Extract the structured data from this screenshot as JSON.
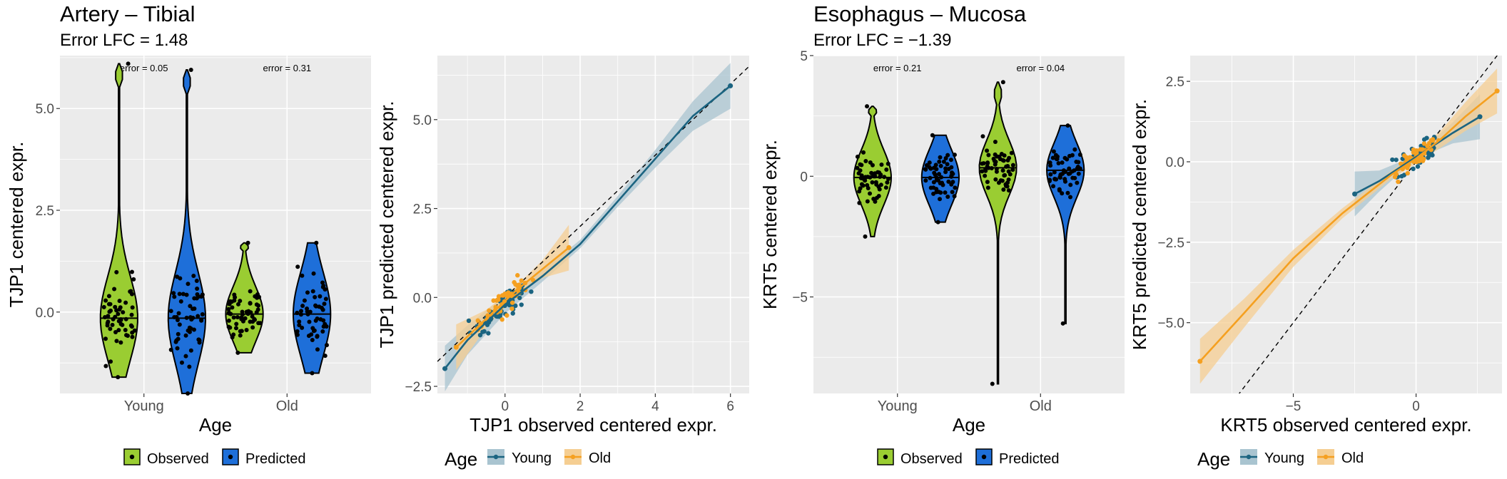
{
  "colors": {
    "observed_fill": "#9ACD32",
    "predicted_fill": "#1E6FD9",
    "young_line": "#1B6481",
    "young_band": "#A9C4D0",
    "old_line": "#F5A020",
    "old_band": "#F5CE92",
    "panel_bg": "#EBEBEB",
    "grid": "#FFFFFF"
  },
  "panels": [
    {
      "title": "Artery – Tibial",
      "subtitle": "Error LFC = 1.48"
    },
    {
      "title": "Esophagus – Mucosa",
      "subtitle": "Error LFC = −1.39"
    }
  ],
  "chart_data": [
    {
      "type": "violin",
      "xlabel": "Age",
      "ylabel": "TJP1 centered expr.",
      "categories": [
        "Young",
        "Old"
      ],
      "ylim": [
        -2.0,
        6.3
      ],
      "y_ticks": [
        0.0,
        2.5,
        5.0
      ],
      "y_tick_labels": [
        "0.0",
        "2.5",
        "5.0"
      ],
      "error_labels": [
        "error = 0.05",
        "error = 0.31"
      ],
      "legend": {
        "position": "bottom",
        "entries": [
          "Observed",
          "Predicted"
        ]
      },
      "series": [
        {
          "name": "Observed",
          "group": "Young",
          "median": -0.15,
          "min": -1.6,
          "max": 6.1
        },
        {
          "name": "Predicted",
          "group": "Young",
          "median": -0.15,
          "min": -2.0,
          "max": 5.95
        },
        {
          "name": "Observed",
          "group": "Old",
          "median": -0.05,
          "min": -1.0,
          "max": 1.7
        },
        {
          "name": "Predicted",
          "group": "Old",
          "median": -0.05,
          "min": -1.5,
          "max": 1.7
        }
      ]
    },
    {
      "type": "scatter",
      "xlabel": "TJP1 observed centered expr.",
      "ylabel": "TJP1 predicted centered expr.",
      "xlim": [
        -1.8,
        6.5
      ],
      "ylim": [
        -2.7,
        6.8
      ],
      "x_ticks": [
        0,
        2,
        4,
        6
      ],
      "x_tick_labels": [
        "0",
        "2",
        "4",
        "6"
      ],
      "y_ticks": [
        -2.5,
        0.0,
        2.5,
        5.0
      ],
      "y_tick_labels": [
        "−2.5",
        "0.0",
        "2.5",
        "5.0"
      ],
      "reference_line": "y = x",
      "legend": {
        "position": "bottom",
        "title": "Age",
        "entries": [
          "Young",
          "Old"
        ]
      },
      "series": [
        {
          "name": "Young",
          "fit": [
            [
              -1.6,
              -2.0
            ],
            [
              -1.0,
              -1.2
            ],
            [
              0.0,
              -0.2
            ],
            [
              1.0,
              0.6
            ],
            [
              2.0,
              1.5
            ],
            [
              3.0,
              2.7
            ],
            [
              4.0,
              3.9
            ],
            [
              5.0,
              5.1
            ],
            [
              6.0,
              5.95
            ]
          ]
        },
        {
          "name": "Old",
          "fit": [
            [
              -1.3,
              -1.4
            ],
            [
              -0.5,
              -0.6
            ],
            [
              0.3,
              0.2
            ],
            [
              1.0,
              0.8
            ],
            [
              1.7,
              1.4
            ]
          ]
        }
      ]
    },
    {
      "type": "violin",
      "xlabel": "Age",
      "ylabel": "KRT5 centered expr.",
      "categories": [
        "Young",
        "Old"
      ],
      "ylim": [
        -9.0,
        5.0
      ],
      "y_ticks": [
        -5,
        0,
        5
      ],
      "y_tick_labels": [
        "−5",
        "0",
        "5"
      ],
      "error_labels": [
        "error = 0.21",
        "error = 0.04"
      ],
      "legend": {
        "position": "bottom",
        "entries": [
          "Observed",
          "Predicted"
        ]
      },
      "series": [
        {
          "name": "Observed",
          "group": "Young",
          "median": -0.05,
          "min": -2.5,
          "max": 2.9
        },
        {
          "name": "Predicted",
          "group": "Young",
          "median": -0.05,
          "min": -1.9,
          "max": 1.7
        },
        {
          "name": "Observed",
          "group": "Old",
          "median": 0.35,
          "min": -8.6,
          "max": 3.9
        },
        {
          "name": "Predicted",
          "group": "Old",
          "median": 0.25,
          "min": -6.1,
          "max": 2.1
        }
      ]
    },
    {
      "type": "scatter",
      "xlabel": "KRT5 observed centered expr.",
      "ylabel": "KRT5 predicted centered expr.",
      "xlim": [
        -9.2,
        3.5
      ],
      "ylim": [
        -7.2,
        3.3
      ],
      "x_ticks": [
        -5,
        0
      ],
      "x_tick_labels": [
        "−5",
        "0"
      ],
      "y_ticks": [
        -5.0,
        -2.5,
        0.0,
        2.5
      ],
      "y_tick_labels": [
        "−5.0",
        "−2.5",
        "0.0",
        "2.5"
      ],
      "reference_line": "y = x",
      "legend": {
        "position": "bottom",
        "title": "Age",
        "entries": [
          "Young",
          "Old"
        ]
      },
      "series": [
        {
          "name": "Young",
          "fit": [
            [
              -2.5,
              -1.0
            ],
            [
              -1.5,
              -0.6
            ],
            [
              -0.5,
              -0.1
            ],
            [
              0.5,
              0.4
            ],
            [
              1.5,
              0.9
            ],
            [
              2.6,
              1.4
            ]
          ]
        },
        {
          "name": "Old",
          "fit": [
            [
              -8.8,
              -6.2
            ],
            [
              -7.0,
              -4.7
            ],
            [
              -5.0,
              -3.0
            ],
            [
              -3.0,
              -1.6
            ],
            [
              -1.0,
              -0.4
            ],
            [
              0.0,
              0.1
            ],
            [
              1.0,
              0.7
            ],
            [
              2.0,
              1.4
            ],
            [
              3.3,
              2.2
            ]
          ]
        }
      ]
    }
  ]
}
